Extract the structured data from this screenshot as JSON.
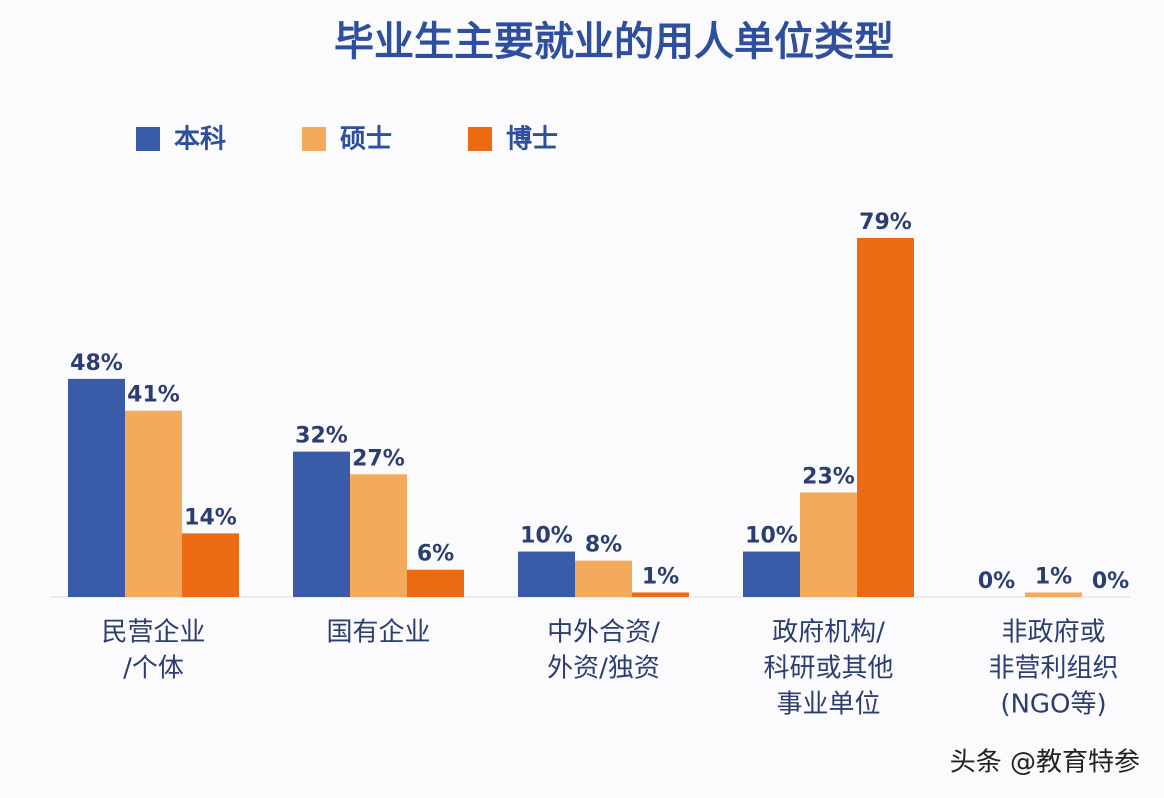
{
  "chart_data": {
    "type": "bar",
    "title": "毕业生主要就业的用人单位类型",
    "categories": [
      [
        "民营企业",
        "/个体"
      ],
      [
        "国有企业"
      ],
      [
        "中外合资/",
        "外资/独资"
      ],
      [
        "政府机构/",
        "科研或其他",
        "事业单位"
      ],
      [
        "非政府或",
        "非营利组织",
        "(NGO等)"
      ]
    ],
    "series": [
      {
        "name": "本科",
        "color": "#3a5ba8",
        "values": [
          48,
          32,
          10,
          10,
          0
        ],
        "value_labels": [
          "48%",
          "32%",
          "10%",
          "10%",
          "0%"
        ]
      },
      {
        "name": "硕士",
        "color": "#f4aa5c",
        "values": [
          41,
          27,
          8,
          23,
          1
        ],
        "value_labels": [
          "41%",
          "27%",
          "8%",
          "23%",
          "1%"
        ]
      },
      {
        "name": "博士",
        "color": "#ec6b12",
        "values": [
          14,
          6,
          1,
          79,
          0
        ],
        "value_labels": [
          "14%",
          "6%",
          "1%",
          "79%",
          "0%"
        ]
      }
    ],
    "watermark": "头条 @教育特参"
  }
}
